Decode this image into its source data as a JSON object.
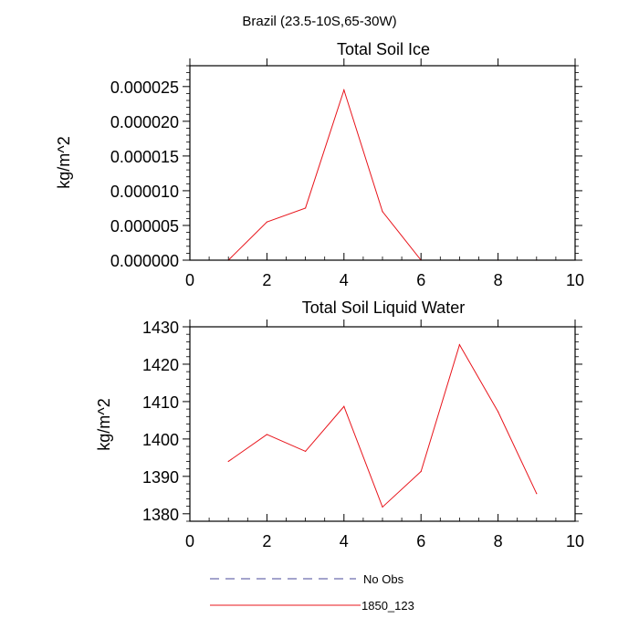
{
  "figure_title": "Brazil (23.5-10S,65-30W)",
  "legend": [
    {
      "label": "No Obs",
      "color": "#4a4a9a",
      "style": "dashed"
    },
    {
      "label": "1850_123",
      "color": "#e8141b",
      "style": "solid"
    }
  ],
  "chart_data": [
    {
      "type": "line",
      "title": "Total Soil Ice",
      "xlabel": "",
      "ylabel": "kg/m^2",
      "xlim": [
        0,
        10
      ],
      "ylim": [
        0,
        2.8e-05
      ],
      "xticks": [
        0,
        2,
        4,
        6,
        8,
        10
      ],
      "yticks": [
        0,
        5e-06,
        1e-05,
        1.5e-05,
        2e-05,
        2.5e-05
      ],
      "xtick_labels": [
        "0",
        "2",
        "4",
        "6",
        "8",
        "10"
      ],
      "ytick_labels": [
        "0.000000",
        "0.000005",
        "0.000010",
        "0.000015",
        "0.000020",
        "0.000025"
      ],
      "series": [
        {
          "name": "1850_123",
          "color": "#e8141b",
          "x": [
            1,
            2,
            3,
            4,
            5,
            6,
            7,
            8,
            9
          ],
          "values": [
            0,
            5.5e-06,
            7.5e-06,
            2.45e-05,
            7e-06,
            0,
            0,
            0,
            0
          ]
        }
      ]
    },
    {
      "type": "line",
      "title": "Total Soil Liquid Water",
      "xlabel": "",
      "ylabel": "kg/m^2",
      "xlim": [
        0,
        10
      ],
      "ylim": [
        1378,
        1430
      ],
      "xticks": [
        0,
        2,
        4,
        6,
        8,
        10
      ],
      "yticks": [
        1380,
        1390,
        1400,
        1410,
        1420,
        1430
      ],
      "xtick_labels": [
        "0",
        "2",
        "4",
        "6",
        "8",
        "10"
      ],
      "ytick_labels": [
        "1380",
        "1390",
        "1400",
        "1410",
        "1420",
        "1430"
      ],
      "series": [
        {
          "name": "1850_123",
          "color": "#e8141b",
          "x": [
            1,
            2,
            3,
            4,
            5,
            6,
            7,
            8,
            9
          ],
          "values": [
            1394,
            1401.2,
            1396.7,
            1408.7,
            1381.8,
            1391.3,
            1425.2,
            1407.3,
            1385.4
          ]
        }
      ]
    }
  ]
}
